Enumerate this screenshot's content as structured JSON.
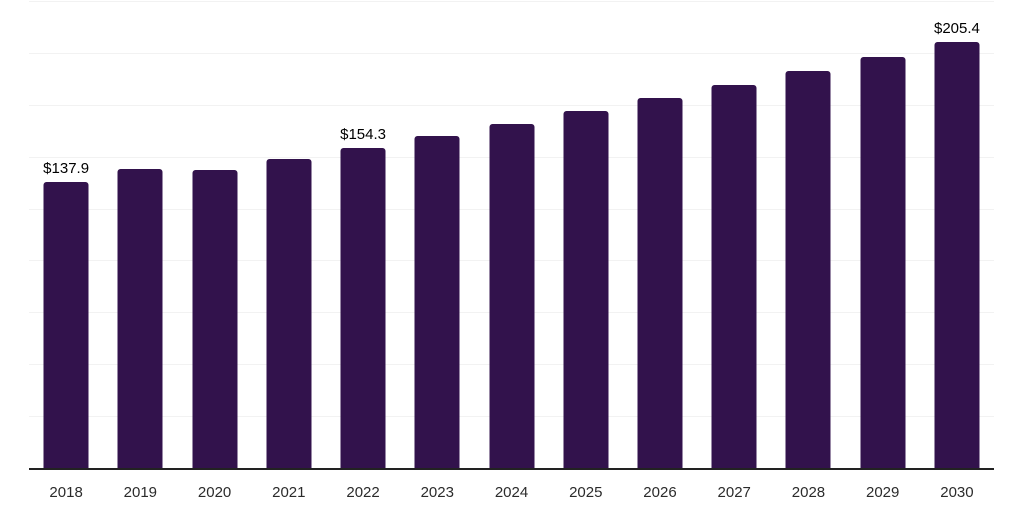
{
  "chart_data": {
    "type": "bar",
    "title": "",
    "xlabel": "",
    "ylabel": "",
    "categories": [
      "2018",
      "2019",
      "2020",
      "2021",
      "2022",
      "2023",
      "2024",
      "2025",
      "2026",
      "2027",
      "2028",
      "2029",
      "2030"
    ],
    "values": [
      137.9,
      144.2,
      143.7,
      148.9,
      154.3,
      159.9,
      165.8,
      171.8,
      178.1,
      184.6,
      191.3,
      198.2,
      205.4
    ],
    "data_labels": [
      "$137.9",
      "",
      "",
      "",
      "$154.3",
      "",
      "",
      "",
      "",
      "",
      "",
      "",
      "$205.4"
    ],
    "ylim": [
      0,
      225
    ],
    "gridline_values": [
      25,
      50,
      75,
      100,
      125,
      150,
      175,
      200,
      225
    ],
    "grid": "horizontal",
    "legend": "none",
    "colors": {
      "bar": "#32124C",
      "gridline": "#f2f2f2",
      "axis": "#222222",
      "value_label": "#000000",
      "tick_label": "#2b2b2b",
      "background": "#ffffff"
    }
  }
}
